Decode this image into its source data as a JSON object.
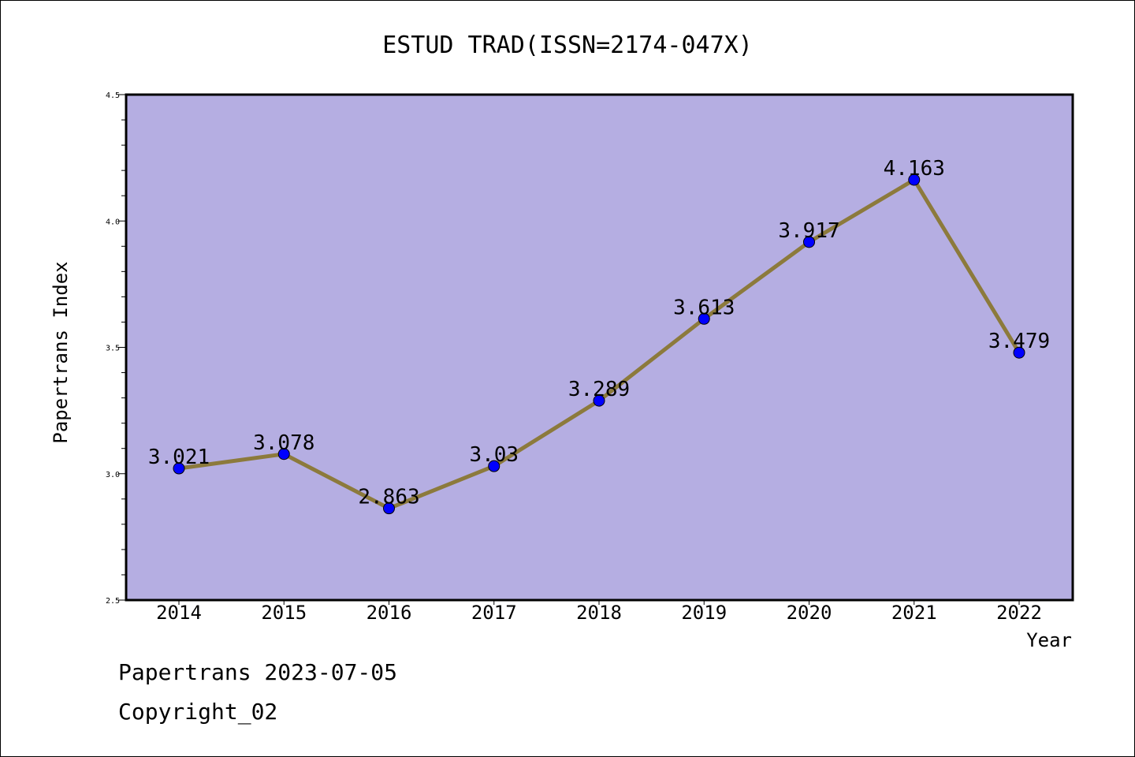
{
  "chart_data": {
    "type": "line",
    "title": "ESTUD TRAD(ISSN=2174-047X)",
    "xlabel": "Year",
    "ylabel": "Papertrans Index",
    "categories": [
      "2014",
      "2015",
      "2016",
      "2017",
      "2018",
      "2019",
      "2020",
      "2021",
      "2022"
    ],
    "values": [
      3.021,
      3.078,
      2.863,
      3.03,
      3.289,
      3.613,
      3.917,
      4.163,
      3.479
    ],
    "data_labels": [
      "3.021",
      "3.078",
      "2.863",
      "3.03",
      "3.289",
      "3.613",
      "3.917",
      "4.163",
      "3.479"
    ],
    "ylim": [
      2.5,
      4.5
    ],
    "yticks": [
      "2.5",
      "3.0",
      "3.5",
      "4.0",
      "4.5"
    ],
    "grid": false,
    "colors": {
      "plot_background": "#b5aee2",
      "line": "#8c7a3c",
      "marker": "#0000ff"
    }
  },
  "footer": {
    "date_line": "Papertrans 2023-07-05",
    "copyright": "Copyright_02"
  }
}
